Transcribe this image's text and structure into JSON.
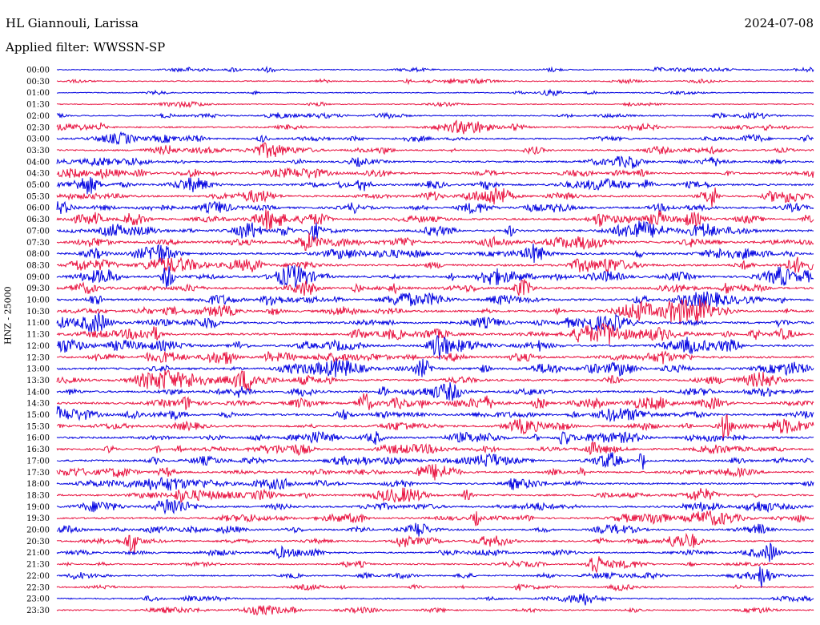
{
  "header": {
    "station": "HL Giannouli, Larissa",
    "date": "2024-07-08",
    "filter_text": "Applied filter: WWSSN-SP"
  },
  "chart_data": {
    "type": "line",
    "title": "HL Giannouli, Larissa",
    "ylabel": "HNZ - 25000",
    "filter": "WWSSN-SP",
    "row_labels": [
      "00:00",
      "00:30",
      "01:00",
      "01:30",
      "02:00",
      "02:30",
      "03:00",
      "03:30",
      "04:00",
      "04:30",
      "05:00",
      "05:30",
      "06:00",
      "06:30",
      "07:00",
      "07:30",
      "08:00",
      "08:30",
      "09:00",
      "09:30",
      "10:00",
      "10:30",
      "11:00",
      "11:30",
      "12:00",
      "12:30",
      "13:00",
      "13:30",
      "14:00",
      "14:30",
      "15:00",
      "15:30",
      "16:00",
      "16:30",
      "17:00",
      "17:30",
      "18:00",
      "18:30",
      "19:00",
      "19:30",
      "20:00",
      "20:30",
      "21:00",
      "21:30",
      "22:00",
      "22:30",
      "23:00",
      "23:30"
    ],
    "colors": [
      "#0000e0",
      "#e8113f"
    ],
    "activity_level": [
      0.25,
      0.2,
      0.15,
      0.15,
      0.3,
      0.45,
      0.5,
      0.55,
      0.6,
      0.65,
      0.7,
      0.7,
      0.75,
      0.8,
      0.85,
      0.8,
      0.85,
      0.8,
      0.8,
      0.8,
      0.8,
      0.85,
      0.85,
      0.85,
      0.8,
      0.8,
      0.8,
      0.8,
      0.75,
      0.8,
      0.75,
      0.7,
      0.75,
      0.7,
      0.7,
      0.65,
      0.6,
      0.65,
      0.65,
      0.6,
      0.6,
      0.55,
      0.45,
      0.45,
      0.4,
      0.35,
      0.35,
      0.3
    ]
  }
}
